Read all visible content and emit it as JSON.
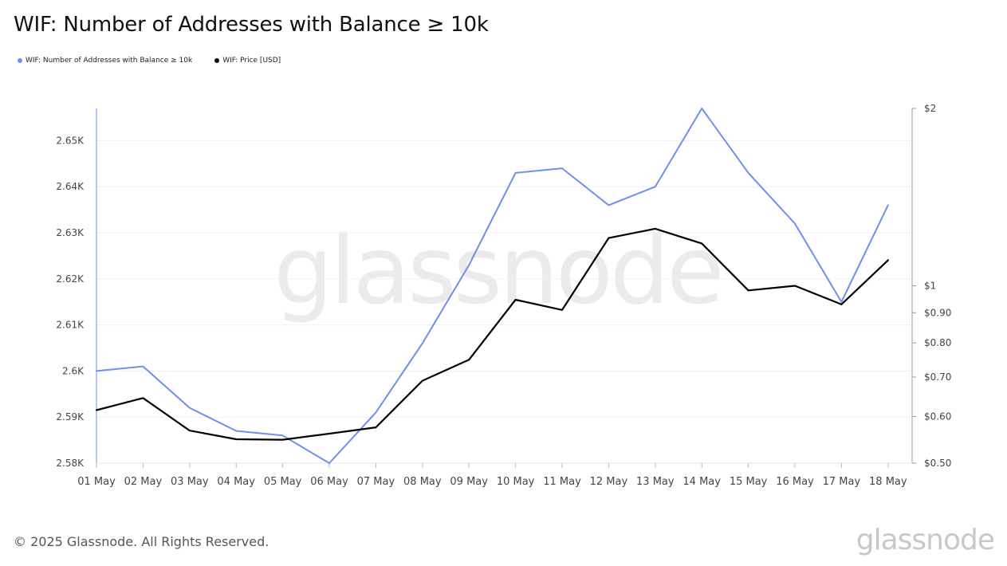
{
  "title": "WIF: Number of Addresses with Balance ≥ 10k",
  "legend": [
    {
      "label": "WIF: Number of Addresses with Balance ≥ 10k",
      "color": "#6e8ef0"
    },
    {
      "label": "WIF: Price [USD]",
      "color": "#000000"
    }
  ],
  "watermark": "glassnode",
  "footer": {
    "copyright": "© 2025 Glassnode. All Rights Reserved.",
    "brand": "glassnode"
  },
  "chart_data": {
    "type": "line",
    "title": "WIF: Number of Addresses with Balance ≥ 10k",
    "categories": [
      "01 May",
      "02 May",
      "03 May",
      "04 May",
      "05 May",
      "06 May",
      "07 May",
      "08 May",
      "09 May",
      "10 May",
      "11 May",
      "12 May",
      "13 May",
      "14 May",
      "15 May",
      "16 May",
      "17 May",
      "18 May"
    ],
    "series": [
      {
        "name": "WIF: Number of Addresses with Balance ≥ 10k",
        "axis": "left",
        "color": "#6e8ef0",
        "values": [
          2600,
          2601,
          2592,
          2587,
          2586,
          2580,
          2591,
          2606,
          2623,
          2643,
          2644,
          2636,
          2640,
          2657,
          2643,
          2632,
          2615,
          2636
        ]
      },
      {
        "name": "WIF: Price [USD]",
        "axis": "right",
        "color": "#000000",
        "values": [
          0.615,
          0.645,
          0.568,
          0.549,
          0.548,
          0.561,
          0.575,
          0.69,
          0.749,
          0.947,
          0.91,
          1.205,
          1.25,
          1.18,
          0.982,
          1.0,
          0.93,
          1.105
        ]
      }
    ],
    "y_left": {
      "ylim": [
        2580,
        2657
      ],
      "ticks": [
        2580,
        2590,
        2600,
        2610,
        2620,
        2630,
        2640,
        2650
      ],
      "tick_labels": [
        "2.58K",
        "2.59K",
        "2.6K",
        "2.61K",
        "2.62K",
        "2.63K",
        "2.64K",
        "2.65K"
      ]
    },
    "y_right": {
      "scale": "log",
      "ylim": [
        0.5,
        2
      ],
      "ticks": [
        0.5,
        0.6,
        0.7,
        0.8,
        0.9,
        1,
        2
      ],
      "tick_labels": [
        "$0.50",
        "$0.60",
        "$0.70",
        "$0.80",
        "$0.90",
        "$1",
        "$2"
      ]
    },
    "grid": true,
    "legend_position": "top-left"
  }
}
